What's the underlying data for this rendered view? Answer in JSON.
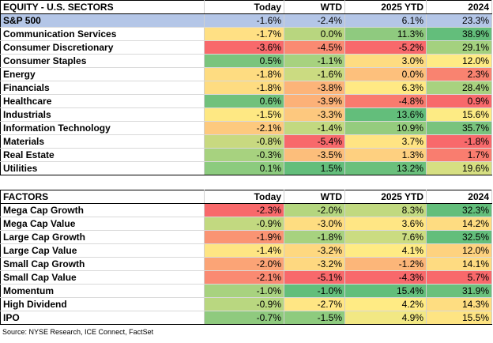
{
  "equity": {
    "title": "EQUITY - U.S. SECTORS",
    "columns": [
      "Today",
      "WTD",
      "2025 YTD",
      "2024"
    ],
    "rows": [
      {
        "name": "S&P 500",
        "values": [
          "-1.6%",
          "-2.4%",
          "6.1%",
          "23.3%"
        ],
        "colors": [
          "#b4c6e7",
          "#b4c6e7",
          "#b4c6e7",
          "#b4c6e7"
        ]
      },
      {
        "name": "Communication Services",
        "values": [
          "-1.7%",
          "0.0%",
          "11.3%",
          "38.9%"
        ],
        "colors": [
          "#ffe084",
          "#b8d67f",
          "#8fca7f",
          "#63be7b"
        ]
      },
      {
        "name": "Consumer Discretionary",
        "values": [
          "-3.6%",
          "-4.5%",
          "-5.2%",
          "29.1%"
        ],
        "colors": [
          "#f8696b",
          "#fa8a72",
          "#f8696b",
          "#a4d17f"
        ]
      },
      {
        "name": "Consumer Staples",
        "values": [
          "0.5%",
          "-1.1%",
          "3.0%",
          "12.0%"
        ],
        "colors": [
          "#7ac47d",
          "#a7d27f",
          "#fedc81",
          "#ffeb84"
        ]
      },
      {
        "name": "Energy",
        "values": [
          "-1.8%",
          "-1.6%",
          "0.0%",
          "2.3%"
        ],
        "colors": [
          "#fedc81",
          "#cbdb81",
          "#fdc07c",
          "#f98370"
        ]
      },
      {
        "name": "Financials",
        "values": [
          "-1.8%",
          "-3.8%",
          "6.3%",
          "28.4%"
        ],
        "colors": [
          "#fedc81",
          "#fcb479",
          "#ffe984",
          "#a8d27f"
        ]
      },
      {
        "name": "Healthcare",
        "values": [
          "0.6%",
          "-3.9%",
          "-4.8%",
          "0.9%"
        ],
        "colors": [
          "#71c17c",
          "#fcb178",
          "#f97b6e",
          "#f8696b"
        ]
      },
      {
        "name": "Industrials",
        "values": [
          "-1.5%",
          "-3.3%",
          "13.6%",
          "15.6%"
        ],
        "colors": [
          "#fee883",
          "#fdc87e",
          "#63be7b",
          "#fdeb84"
        ]
      },
      {
        "name": "Information Technology",
        "values": [
          "-2.1%",
          "-1.4%",
          "10.9%",
          "35.7%"
        ],
        "colors": [
          "#fdc97e",
          "#c2d980",
          "#95cc7e",
          "#79c37d"
        ]
      },
      {
        "name": "Materials",
        "values": [
          "-0.8%",
          "-5.4%",
          "3.7%",
          "-1.8%"
        ],
        "colors": [
          "#c8d980",
          "#f8696b",
          "#ffe483",
          "#f8696b"
        ]
      },
      {
        "name": "Real Estate",
        "values": [
          "-0.3%",
          "-3.5%",
          "1.3%",
          "1.7%"
        ],
        "colors": [
          "#a7d27f",
          "#fcbe7b",
          "#fed080",
          "#f97d6f"
        ]
      },
      {
        "name": "Utilities",
        "values": [
          "0.1%",
          "1.5%",
          "13.2%",
          "19.6%"
        ],
        "colors": [
          "#8ccb7e",
          "#63be7b",
          "#6ac07c",
          "#d6df82"
        ]
      }
    ]
  },
  "factors": {
    "title": "FACTORS",
    "columns": [
      "Today",
      "WTD",
      "2025 YTD",
      "2024"
    ],
    "rows": [
      {
        "name": "Mega Cap Growth",
        "values": [
          "-2.3%",
          "-2.0%",
          "8.3%",
          "32.3%"
        ],
        "colors": [
          "#f8696b",
          "#b4d67f",
          "#c1d980",
          "#63be7b"
        ]
      },
      {
        "name": "Mega Cap Value",
        "values": [
          "-0.9%",
          "-3.0%",
          "3.6%",
          "14.2%"
        ],
        "colors": [
          "#c2d980",
          "#fedd81",
          "#ffe684",
          "#fedc81"
        ]
      },
      {
        "name": "Large Cap Growth",
        "values": [
          "-1.9%",
          "-1.8%",
          "7.6%",
          "32.5%"
        ],
        "colors": [
          "#fa9473",
          "#a7d27f",
          "#cbdc81",
          "#63be7b"
        ]
      },
      {
        "name": "Large Cap Value",
        "values": [
          "-1.4%",
          "-3.2%",
          "4.1%",
          "12.0%"
        ],
        "colors": [
          "#fee583",
          "#fed880",
          "#ffeb84",
          "#fed27f"
        ]
      },
      {
        "name": "Small Cap Growth",
        "values": [
          "-2.0%",
          "-3.2%",
          "-1.2%",
          "14.1%"
        ],
        "colors": [
          "#fba476",
          "#fed880",
          "#fcb679",
          "#fedb81"
        ]
      },
      {
        "name": "Small Cap Value",
        "values": [
          "-2.1%",
          "-5.1%",
          "-4.3%",
          "5.7%"
        ],
        "colors": [
          "#fa8a72",
          "#f8696b",
          "#f8696b",
          "#f8696b"
        ]
      },
      {
        "name": "Momentum",
        "values": [
          "-1.0%",
          "-1.0%",
          "15.4%",
          "31.9%"
        ],
        "colors": [
          "#a8d27f",
          "#63be7b",
          "#63be7b",
          "#6ac07c"
        ]
      },
      {
        "name": "High Dividend",
        "values": [
          "-0.9%",
          "-2.7%",
          "4.2%",
          "14.3%"
        ],
        "colors": [
          "#b9d780",
          "#ffe684",
          "#ffeb84",
          "#fedd81"
        ]
      },
      {
        "name": "IPO",
        "values": [
          "-0.7%",
          "-1.5%",
          "4.9%",
          "15.5%"
        ],
        "colors": [
          "#8fca7e",
          "#8ecb7e",
          "#f2e884",
          "#fee483"
        ]
      }
    ]
  },
  "source": "Source: NYSE Research, ICE Connect, FactSet"
}
